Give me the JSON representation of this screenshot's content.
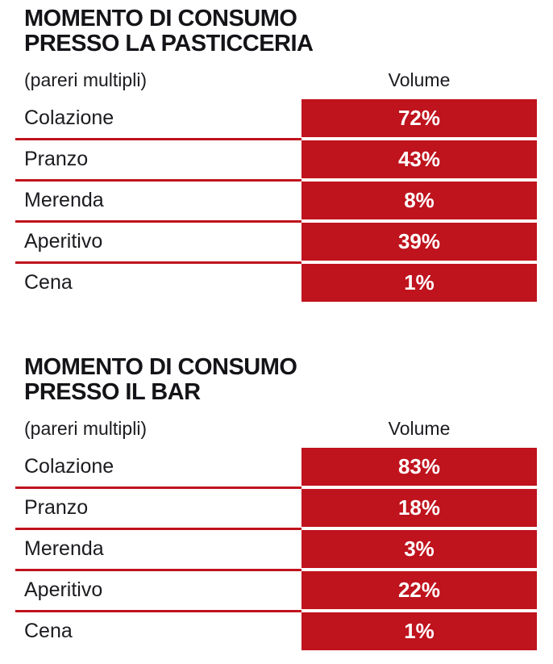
{
  "page": {
    "accent_red": "#bf131d",
    "text_color": "#1b1b20",
    "background": "#ffffff"
  },
  "tables": [
    {
      "title_line1": "MOMENTO DI CONSUMO",
      "title_line2": "PRESSO LA PASTICCERIA",
      "note": "(pareri multipli)",
      "volume_header": "Volume",
      "rows": [
        {
          "label": "Colazione",
          "value": "72%"
        },
        {
          "label": "Pranzo",
          "value": "43%"
        },
        {
          "label": "Merenda",
          "value": "8%"
        },
        {
          "label": "Aperitivo",
          "value": "39%"
        },
        {
          "label": "Cena",
          "value": "1%"
        }
      ]
    },
    {
      "title_line1": "MOMENTO DI CONSUMO",
      "title_line2": "PRESSO IL BAR",
      "note": "(pareri multipli)",
      "volume_header": "Volume",
      "rows": [
        {
          "label": "Colazione",
          "value": "83%"
        },
        {
          "label": "Pranzo",
          "value": "18%"
        },
        {
          "label": "Merenda",
          "value": "3%"
        },
        {
          "label": "Aperitivo",
          "value": "22%"
        },
        {
          "label": "Cena",
          "value": "1%"
        }
      ]
    }
  ],
  "chart_data": [
    {
      "type": "table",
      "title": "MOMENTO DI CONSUMO PRESSO LA PASTICCERIA",
      "subtitle": "(pareri multipli)",
      "columns": [
        "",
        "Volume"
      ],
      "categories": [
        "Colazione",
        "Pranzo",
        "Merenda",
        "Aperitivo",
        "Cena"
      ],
      "values": [
        72,
        43,
        8,
        39,
        1
      ],
      "unit": "%",
      "value_column_style": "red-highlight"
    },
    {
      "type": "table",
      "title": "MOMENTO DI CONSUMO PRESSO IL BAR",
      "subtitle": "(pareri multipli)",
      "columns": [
        "",
        "Volume"
      ],
      "categories": [
        "Colazione",
        "Pranzo",
        "Merenda",
        "Aperitivo",
        "Cena"
      ],
      "values": [
        83,
        18,
        3,
        22,
        1
      ],
      "unit": "%",
      "value_column_style": "red-highlight"
    }
  ]
}
